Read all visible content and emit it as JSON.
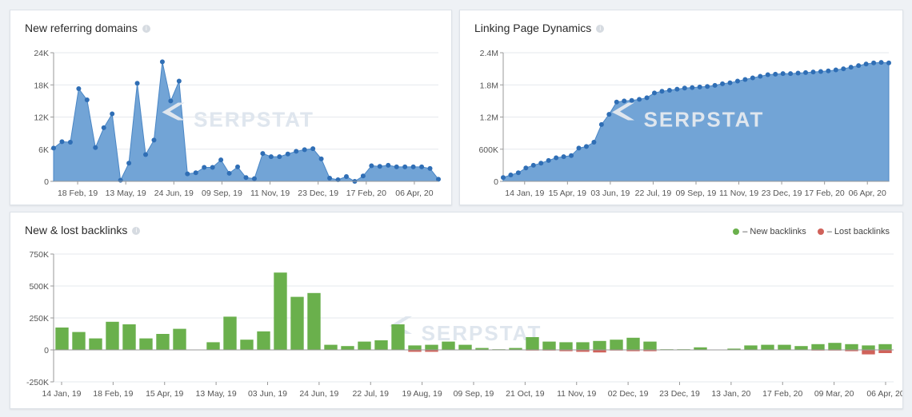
{
  "chart_data": [
    {
      "id": "referring",
      "type": "area",
      "title": "New referring domains",
      "ylim": [
        0,
        24000
      ],
      "yticks": [
        0,
        6000,
        12000,
        18000,
        24000
      ],
      "ytick_labels": [
        "0",
        "6K",
        "12K",
        "18K",
        "24K"
      ],
      "xtick_labels": [
        "18 Feb, 19",
        "13 May, 19",
        "24 Jun, 19",
        "09 Sep, 19",
        "11 Nov, 19",
        "23 Dec, 19",
        "17 Feb, 20",
        "06 Apr, 20"
      ],
      "series": [
        {
          "color": "#6a9fd4",
          "values": [
            6200,
            7400,
            7300,
            17300,
            15200,
            6300,
            10000,
            12600,
            200,
            3400,
            18300,
            5000,
            7700,
            22300,
            15000,
            18700,
            1400,
            1600,
            2600,
            2600,
            4000,
            1500,
            2700,
            700,
            500,
            5200,
            4600,
            4600,
            5100,
            5600,
            5900,
            6100,
            4200,
            600,
            300,
            900,
            0,
            1000,
            2900,
            2800,
            3000,
            2700,
            2700,
            2700,
            2700,
            2400,
            400
          ]
        }
      ]
    },
    {
      "id": "linking",
      "type": "area",
      "title": "Linking Page Dynamics",
      "ylim": [
        0,
        2400000
      ],
      "yticks": [
        0,
        600000,
        1200000,
        1800000,
        2400000
      ],
      "ytick_labels": [
        "0",
        "600K",
        "1.2M",
        "1.8M",
        "2.4M"
      ],
      "xtick_labels": [
        "14 Jan, 19",
        "15 Apr, 19",
        "03 Jun, 19",
        "22 Jul, 19",
        "09 Sep, 19",
        "11 Nov, 19",
        "23 Dec, 19",
        "17 Feb, 20",
        "06 Apr, 20"
      ],
      "series": [
        {
          "color": "#6a9fd4",
          "values": [
            70000,
            120000,
            160000,
            250000,
            300000,
            340000,
            390000,
            440000,
            460000,
            480000,
            620000,
            650000,
            730000,
            1060000,
            1250000,
            1480000,
            1500000,
            1510000,
            1530000,
            1560000,
            1650000,
            1680000,
            1700000,
            1720000,
            1740000,
            1750000,
            1760000,
            1770000,
            1790000,
            1820000,
            1840000,
            1870000,
            1900000,
            1930000,
            1960000,
            1990000,
            2000000,
            2010000,
            2010000,
            2020000,
            2030000,
            2040000,
            2050000,
            2060000,
            2080000,
            2100000,
            2130000,
            2160000,
            2190000,
            2210000,
            2220000,
            2210000
          ]
        }
      ]
    },
    {
      "id": "backlinks",
      "type": "bar",
      "title": "New & lost backlinks",
      "ylim": [
        -250000,
        750000
      ],
      "yticks": [
        -250000,
        0,
        250000,
        500000,
        750000
      ],
      "ytick_labels": [
        "-250K",
        "0",
        "250K",
        "500K",
        "750K"
      ],
      "xtick_labels": [
        "14 Jan, 19",
        "18 Feb, 19",
        "15 Apr, 19",
        "13 May, 19",
        "03 Jun, 19",
        "24 Jun, 19",
        "22 Jul, 19",
        "19 Aug, 19",
        "09 Sep, 19",
        "21 Oct, 19",
        "11 Nov, 19",
        "02 Dec, 19",
        "23 Dec, 19",
        "13 Jan, 20",
        "17 Feb, 20",
        "09 Mar, 20",
        "06 Apr, 20"
      ],
      "series": [
        {
          "name": "– New backlinks",
          "color": "#6ab04c",
          "values": [
            175000,
            140000,
            90000,
            220000,
            200000,
            90000,
            125000,
            165000,
            0,
            60000,
            260000,
            80000,
            145000,
            605000,
            415000,
            445000,
            40000,
            30000,
            65000,
            75000,
            200000,
            35000,
            40000,
            65000,
            40000,
            15000,
            5000,
            15000,
            100000,
            65000,
            60000,
            60000,
            70000,
            80000,
            95000,
            65000,
            5000,
            5000,
            20000,
            0,
            10000,
            35000,
            40000,
            40000,
            30000,
            45000,
            55000,
            45000,
            35000,
            45000
          ]
        },
        {
          "name": "– Lost backlinks",
          "color": "#d0625a",
          "values": [
            0,
            0,
            0,
            0,
            0,
            0,
            0,
            0,
            0,
            0,
            0,
            0,
            0,
            0,
            0,
            0,
            0,
            0,
            0,
            0,
            0,
            -15000,
            -15000,
            0,
            0,
            0,
            0,
            0,
            -5000,
            -5000,
            -10000,
            -15000,
            -20000,
            -5000,
            -10000,
            -10000,
            0,
            0,
            0,
            0,
            0,
            0,
            0,
            0,
            0,
            -5000,
            -5000,
            -10000,
            -35000,
            -25000
          ]
        }
      ]
    }
  ],
  "watermark": "SERPSTAT"
}
